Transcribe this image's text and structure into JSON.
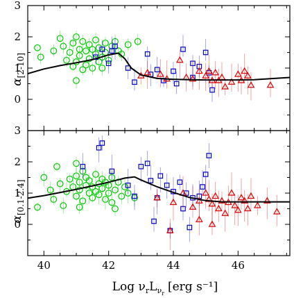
{
  "chart_data": [
    {
      "type": "scatter",
      "panel": "top",
      "ylabel": "α",
      "ylabel_sub": "[2-10]",
      "xlim": [
        39.5,
        47.6
      ],
      "ylim": [
        -1,
        3
      ],
      "yticks": [
        0,
        1,
        2,
        3
      ],
      "yticklabels": [
        "0",
        "1",
        "2",
        "3"
      ],
      "xticks": [
        40,
        42,
        44,
        46
      ],
      "colors": {
        "green": "#00cc00",
        "blue": "#0000cc",
        "red": "#dd0000",
        "curve": "#000000"
      },
      "curve": {
        "x": [
          39.5,
          40.0,
          40.5,
          41.0,
          41.5,
          42.0,
          42.3,
          42.5,
          42.7,
          43.0,
          43.5,
          44.0,
          44.5,
          45.0,
          45.5,
          46.0,
          46.5,
          47.0,
          47.6
        ],
        "y": [
          0.82,
          0.97,
          1.08,
          1.17,
          1.27,
          1.42,
          1.48,
          1.3,
          1.0,
          0.78,
          0.67,
          0.64,
          0.63,
          0.62,
          0.62,
          0.62,
          0.63,
          0.66,
          0.7
        ]
      },
      "series": [
        {
          "name": "",
          "color": "#00cc00",
          "marker": "circle",
          "points": [
            [
              39.8,
              1.65
            ],
            [
              39.9,
              1.35
            ],
            [
              40.3,
              1.55
            ],
            [
              40.5,
              1.95
            ],
            [
              40.6,
              1.7
            ],
            [
              40.7,
              1.25
            ],
            [
              40.8,
              1.5
            ],
            [
              40.9,
              1.8
            ],
            [
              41.0,
              2.0
            ],
            [
              41.0,
              1.2
            ],
            [
              41.1,
              1.6
            ],
            [
              41.1,
              1.4
            ],
            [
              41.2,
              1.85
            ],
            [
              41.3,
              1.55
            ],
            [
              41.3,
              1.1
            ],
            [
              41.4,
              1.75
            ],
            [
              41.4,
              1.3
            ],
            [
              41.5,
              1.6
            ],
            [
              41.5,
              1.0
            ],
            [
              41.6,
              1.9
            ],
            [
              41.6,
              1.45
            ],
            [
              41.7,
              1.2
            ],
            [
              41.7,
              1.65
            ],
            [
              41.8,
              1.35
            ],
            [
              41.8,
              1.0
            ],
            [
              41.9,
              1.8
            ],
            [
              41.9,
              1.5
            ],
            [
              42.0,
              1.25
            ],
            [
              42.1,
              1.7
            ],
            [
              42.2,
              1.85
            ],
            [
              42.3,
              1.55
            ],
            [
              42.4,
              1.45
            ],
            [
              41.2,
              0.95
            ],
            [
              40.9,
              1.05
            ],
            [
              41.0,
              0.6
            ],
            [
              42.6,
              1.75
            ],
            [
              42.9,
              1.85
            ]
          ],
          "yerr": 0.2
        },
        {
          "name": "",
          "color": "#0000cc",
          "marker": "square",
          "points": [
            [
              41.6,
              1.35
            ],
            [
              41.8,
              1.6
            ],
            [
              42.0,
              1.15
            ],
            [
              42.1,
              1.55
            ],
            [
              42.2,
              1.7
            ],
            [
              42.6,
              1.0
            ],
            [
              42.8,
              0.55
            ],
            [
              43.2,
              1.45
            ],
            [
              43.3,
              0.8
            ],
            [
              43.5,
              0.95
            ],
            [
              43.7,
              0.6
            ],
            [
              44.0,
              0.9
            ],
            [
              44.1,
              0.5
            ],
            [
              44.3,
              1.6
            ],
            [
              44.6,
              1.15
            ],
            [
              44.8,
              1.05
            ],
            [
              45.0,
              1.5
            ],
            [
              45.1,
              0.85
            ],
            [
              45.2,
              0.3
            ],
            [
              44.6,
              0.7
            ]
          ],
          "yerr": 0.35
        },
        {
          "name": "",
          "color": "#dd0000",
          "marker": "triangle",
          "points": [
            [
              43.0,
              0.75
            ],
            [
              43.2,
              0.85
            ],
            [
              43.6,
              0.8
            ],
            [
              43.8,
              0.65
            ],
            [
              44.2,
              1.25
            ],
            [
              44.4,
              0.7
            ],
            [
              44.6,
              0.65
            ],
            [
              44.8,
              0.9
            ],
            [
              45.0,
              0.75
            ],
            [
              45.1,
              0.9
            ],
            [
              45.2,
              0.6
            ],
            [
              45.3,
              0.85
            ],
            [
              45.5,
              0.7
            ],
            [
              45.8,
              0.55
            ],
            [
              46.0,
              0.8
            ],
            [
              46.1,
              0.6
            ],
            [
              46.2,
              0.9
            ],
            [
              46.3,
              0.75
            ],
            [
              46.4,
              0.45
            ],
            [
              47.0,
              0.45
            ],
            [
              45.6,
              0.4
            ],
            [
              45.4,
              0.6
            ]
          ],
          "yerr": 0.45
        }
      ]
    },
    {
      "type": "scatter",
      "panel": "bottom",
      "ylabel": "α",
      "ylabel_sub": "[0.1-2.4]",
      "xlabel": "Log ν",
      "xlabel_parts": {
        "sub_r": "r",
        "L": "L",
        "sub_nu": "ν",
        "sub_sub": "r",
        "units": "[erg s⁻¹]"
      },
      "xlim": [
        39.5,
        47.6
      ],
      "ylim": [
        -1,
        3
      ],
      "yticks": [
        0,
        1,
        2,
        3
      ],
      "yticklabels": [
        "0",
        "1",
        "2",
        "3"
      ],
      "xticks": [
        40,
        42,
        44,
        46
      ],
      "xticklabels": [
        "40",
        "42",
        "44",
        "46"
      ],
      "curve": {
        "x": [
          39.5,
          40.0,
          40.5,
          41.0,
          41.5,
          42.0,
          42.5,
          42.8,
          43.0,
          43.5,
          44.0,
          44.5,
          45.0,
          45.5,
          46.0,
          46.5,
          47.0,
          47.6
        ],
        "y": [
          0.84,
          0.92,
          1.02,
          1.12,
          1.23,
          1.35,
          1.48,
          1.52,
          1.42,
          1.2,
          1.02,
          0.86,
          0.76,
          0.72,
          0.72,
          0.72,
          0.72,
          0.72
        ]
      },
      "series": [
        {
          "name": "",
          "color": "#00cc00",
          "marker": "circle",
          "points": [
            [
              39.8,
              0.55
            ],
            [
              40.0,
              1.5
            ],
            [
              40.2,
              1.1
            ],
            [
              40.3,
              0.8
            ],
            [
              40.5,
              1.3
            ],
            [
              40.6,
              0.6
            ],
            [
              40.7,
              1.05
            ],
            [
              40.8,
              1.45
            ],
            [
              40.9,
              1.2
            ],
            [
              41.0,
              1.55
            ],
            [
              41.0,
              0.9
            ],
            [
              41.1,
              1.35
            ],
            [
              41.1,
              1.1
            ],
            [
              41.2,
              1.7
            ],
            [
              41.2,
              0.75
            ],
            [
              41.3,
              1.25
            ],
            [
              41.3,
              1.5
            ],
            [
              41.4,
              1.0
            ],
            [
              41.4,
              1.4
            ],
            [
              41.5,
              1.2
            ],
            [
              41.5,
              0.85
            ],
            [
              41.6,
              1.6
            ],
            [
              41.6,
              1.05
            ],
            [
              41.7,
              1.3
            ],
            [
              41.7,
              0.95
            ],
            [
              41.8,
              1.45
            ],
            [
              41.8,
              1.15
            ],
            [
              41.9,
              0.8
            ],
            [
              41.9,
              1.35
            ],
            [
              42.0,
              1.0
            ],
            [
              42.0,
              1.25
            ],
            [
              42.1,
              1.5
            ],
            [
              42.1,
              0.7
            ],
            [
              42.2,
              1.1
            ],
            [
              42.3,
              1.35
            ],
            [
              42.4,
              0.9
            ],
            [
              42.5,
              1.2
            ],
            [
              42.6,
              1.0
            ],
            [
              42.8,
              0.85
            ],
            [
              41.1,
              0.55
            ],
            [
              40.4,
              1.85
            ],
            [
              41.0,
              1.95
            ],
            [
              42.2,
              0.5
            ]
          ],
          "yerr": 0.25
        },
        {
          "name": "",
          "color": "#0000cc",
          "marker": "square",
          "points": [
            [
              41.8,
              2.6
            ],
            [
              41.7,
              2.45
            ],
            [
              41.2,
              1.85
            ],
            [
              42.1,
              1.7
            ],
            [
              43.0,
              1.85
            ],
            [
              43.2,
              1.95
            ],
            [
              43.3,
              1.4
            ],
            [
              43.6,
              1.55
            ],
            [
              43.8,
              1.25
            ],
            [
              44.0,
              1.05
            ],
            [
              44.2,
              1.35
            ],
            [
              44.4,
              1.0
            ],
            [
              44.6,
              0.85
            ],
            [
              44.9,
              1.2
            ],
            [
              45.0,
              1.6
            ],
            [
              45.1,
              2.2
            ],
            [
              44.8,
              0.9
            ],
            [
              43.5,
              0.85
            ],
            [
              42.8,
              0.9
            ],
            [
              43.4,
              0.1
            ],
            [
              43.9,
              -0.2
            ],
            [
              44.5,
              -0.1
            ],
            [
              44.3,
              0.5
            ],
            [
              42.6,
              1.25
            ]
          ],
          "yerr": 0.4
        },
        {
          "name": "",
          "color": "#dd0000",
          "marker": "triangle",
          "points": [
            [
              43.5,
              0.85
            ],
            [
              44.0,
              0.7
            ],
            [
              44.3,
              1.0
            ],
            [
              44.6,
              0.55
            ],
            [
              44.8,
              0.75
            ],
            [
              45.0,
              1.0
            ],
            [
              45.1,
              0.8
            ],
            [
              45.2,
              0.65
            ],
            [
              45.3,
              0.9
            ],
            [
              45.4,
              0.5
            ],
            [
              45.5,
              0.75
            ],
            [
              45.6,
              0.35
            ],
            [
              45.7,
              0.7
            ],
            [
              45.8,
              1.0
            ],
            [
              45.9,
              0.6
            ],
            [
              46.0,
              0.45
            ],
            [
              46.1,
              0.85
            ],
            [
              46.2,
              0.75
            ],
            [
              46.3,
              0.5
            ],
            [
              46.4,
              0.9
            ],
            [
              46.6,
              0.6
            ],
            [
              46.9,
              0.75
            ],
            [
              47.2,
              0.4
            ],
            [
              45.2,
              0.0
            ],
            [
              43.9,
              -0.2
            ],
            [
              44.8,
              0.15
            ]
          ],
          "yerr": 0.5
        }
      ]
    }
  ]
}
